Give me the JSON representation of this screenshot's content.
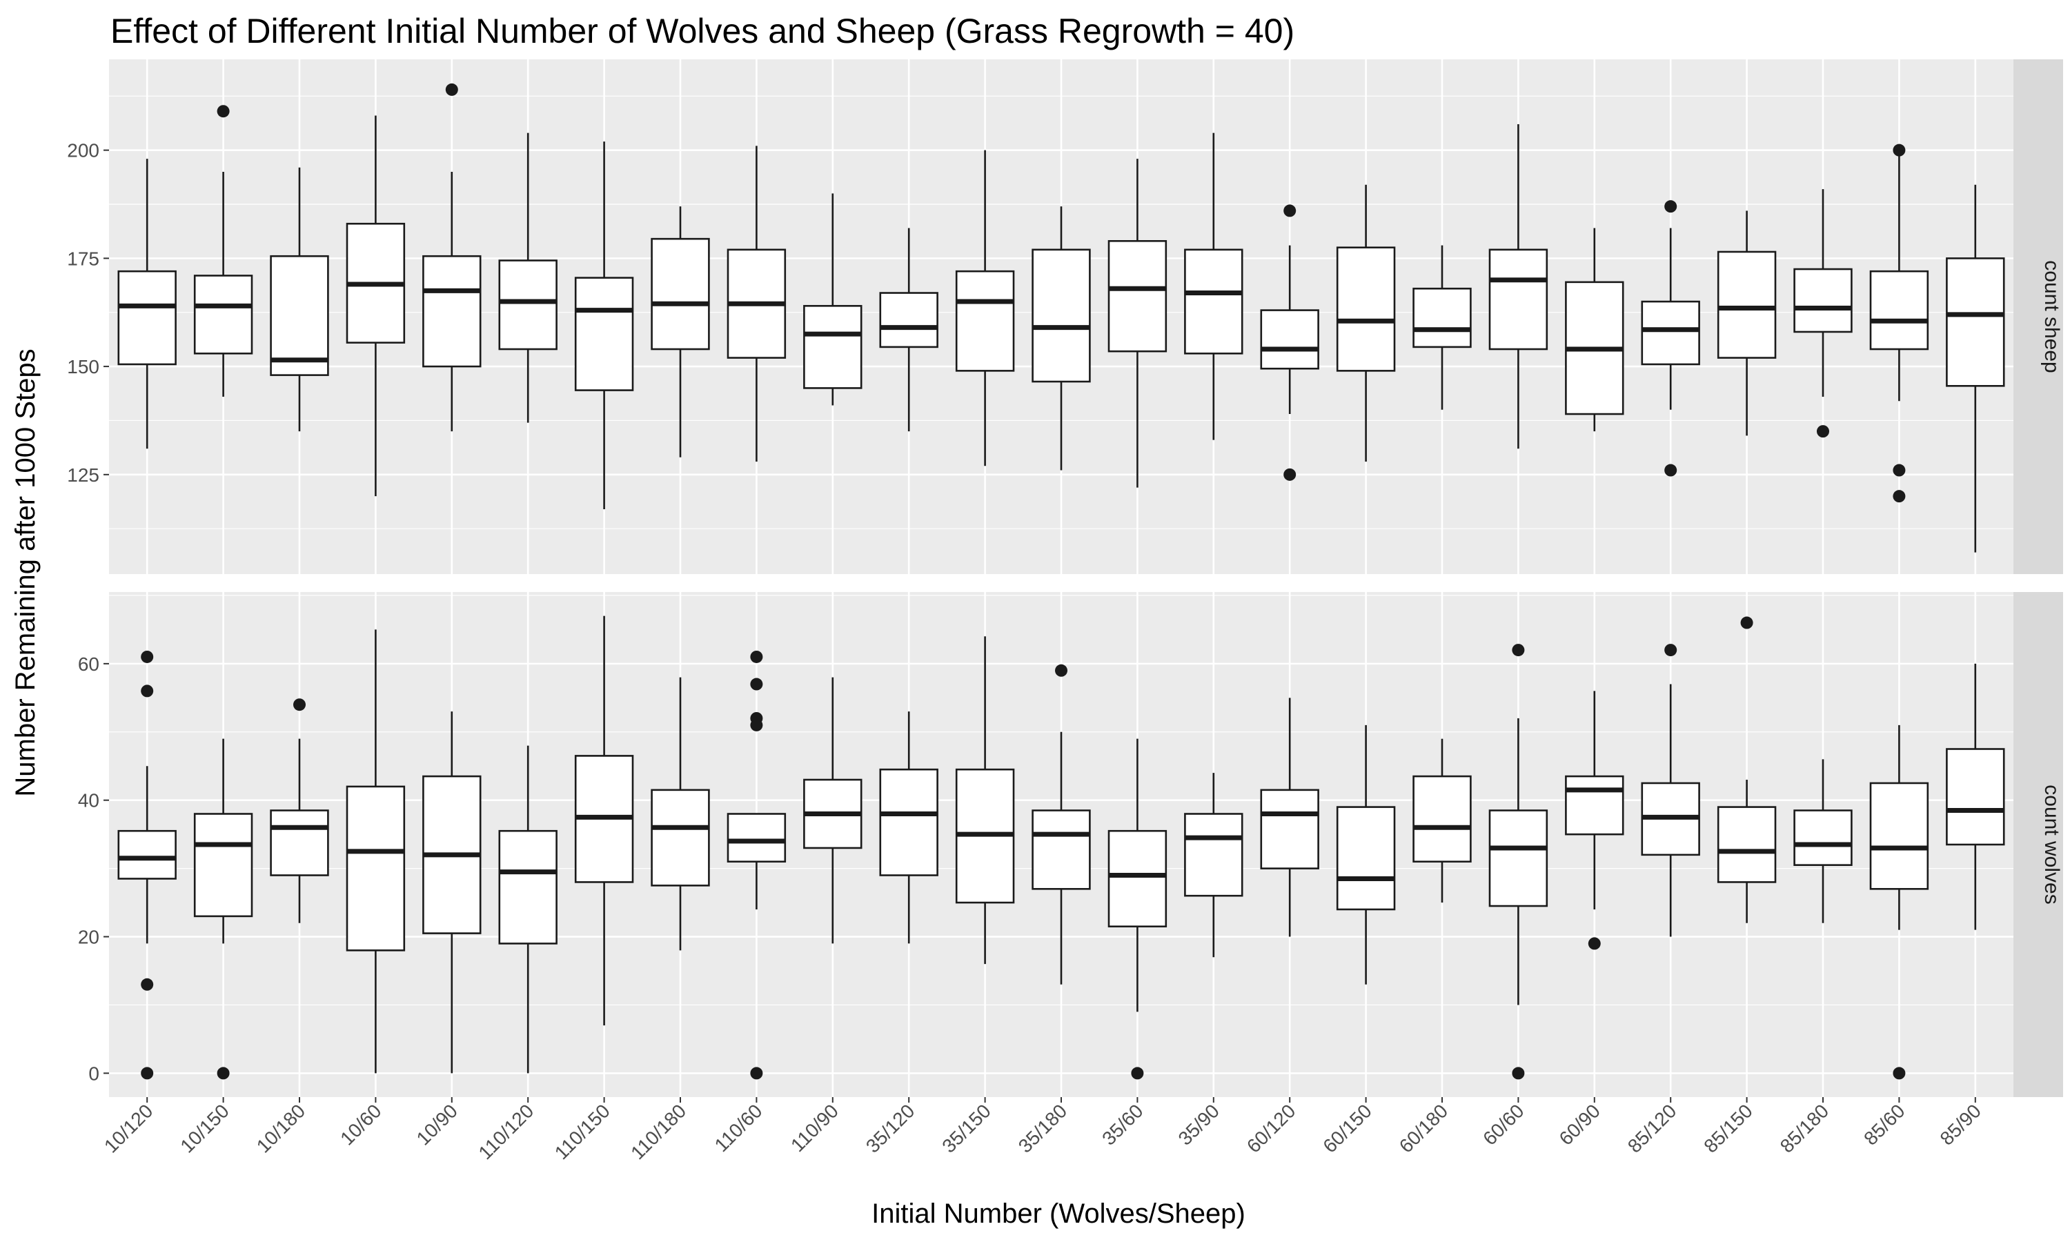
{
  "chart_data": {
    "type": "boxplot",
    "title": "Effect of Different Initial Number of Wolves and Sheep (Grass Regrowth = 40)",
    "xlabel": "Initial Number (Wolves/Sheep)",
    "ylabel": "Number Remaining after 1000 Steps",
    "categories": [
      "10/120",
      "10/150",
      "10/180",
      "10/60",
      "10/90",
      "110/120",
      "110/150",
      "110/180",
      "110/60",
      "110/90",
      "35/120",
      "35/150",
      "35/180",
      "35/60",
      "35/90",
      "60/120",
      "60/150",
      "60/180",
      "60/60",
      "60/90",
      "85/120",
      "85/150",
      "85/180",
      "85/60",
      "85/90"
    ],
    "colors": {
      "panel_bg": "#ebebeb",
      "grid": "#ffffff",
      "strip_bg": "#d9d9d9",
      "box_fill": "#ffffff",
      "box_stroke": "#1a1a1a",
      "outlier": "#1a1a1a"
    },
    "facets": [
      {
        "label": "count sheep",
        "ylim": [
          102,
          221
        ],
        "yticks": [
          125,
          150,
          175,
          200
        ],
        "boxes": [
          {
            "min": 131,
            "q1": 150.5,
            "median": 164,
            "q3": 172,
            "max": 198,
            "outliers": []
          },
          {
            "min": 143,
            "q1": 153,
            "median": 164,
            "q3": 171,
            "max": 195,
            "outliers": [
              209
            ]
          },
          {
            "min": 135,
            "q1": 148,
            "median": 151.5,
            "q3": 175.5,
            "max": 196,
            "outliers": []
          },
          {
            "min": 120,
            "q1": 155.5,
            "median": 169,
            "q3": 183,
            "max": 208,
            "outliers": []
          },
          {
            "min": 135,
            "q1": 150,
            "median": 167.5,
            "q3": 175.5,
            "max": 195,
            "outliers": [
              214
            ]
          },
          {
            "min": 137,
            "q1": 154,
            "median": 165,
            "q3": 174.5,
            "max": 204,
            "outliers": []
          },
          {
            "min": 117,
            "q1": 144.5,
            "median": 163,
            "q3": 170.5,
            "max": 202,
            "outliers": []
          },
          {
            "min": 129,
            "q1": 154,
            "median": 164.5,
            "q3": 179.5,
            "max": 187,
            "outliers": []
          },
          {
            "min": 128,
            "q1": 152,
            "median": 164.5,
            "q3": 177,
            "max": 201,
            "outliers": []
          },
          {
            "min": 141,
            "q1": 145,
            "median": 157.5,
            "q3": 164,
            "max": 190,
            "outliers": []
          },
          {
            "min": 135,
            "q1": 154.5,
            "median": 159,
            "q3": 167,
            "max": 182,
            "outliers": []
          },
          {
            "min": 127,
            "q1": 149,
            "median": 165,
            "q3": 172,
            "max": 200,
            "outliers": []
          },
          {
            "min": 126,
            "q1": 146.5,
            "median": 159,
            "q3": 177,
            "max": 187,
            "outliers": []
          },
          {
            "min": 122,
            "q1": 153.5,
            "median": 168,
            "q3": 179,
            "max": 198,
            "outliers": []
          },
          {
            "min": 133,
            "q1": 153,
            "median": 167,
            "q3": 177,
            "max": 204,
            "outliers": []
          },
          {
            "min": 139,
            "q1": 149.5,
            "median": 154,
            "q3": 163,
            "max": 178,
            "outliers": [
              125,
              186
            ]
          },
          {
            "min": 128,
            "q1": 149,
            "median": 160.5,
            "q3": 177.5,
            "max": 192,
            "outliers": []
          },
          {
            "min": 140,
            "q1": 154.5,
            "median": 158.5,
            "q3": 168,
            "max": 178,
            "outliers": []
          },
          {
            "min": 131,
            "q1": 154,
            "median": 170,
            "q3": 177,
            "max": 206,
            "outliers": []
          },
          {
            "min": 135,
            "q1": 139,
            "median": 154,
            "q3": 169.5,
            "max": 182,
            "outliers": []
          },
          {
            "min": 140,
            "q1": 150.5,
            "median": 158.5,
            "q3": 165,
            "max": 182,
            "outliers": [
              126,
              187
            ]
          },
          {
            "min": 134,
            "q1": 152,
            "median": 163.5,
            "q3": 176.5,
            "max": 186,
            "outliers": []
          },
          {
            "min": 143,
            "q1": 158,
            "median": 163.5,
            "q3": 172.5,
            "max": 191,
            "outliers": [
              135
            ]
          },
          {
            "min": 142,
            "q1": 154,
            "median": 160.5,
            "q3": 172,
            "max": 200,
            "outliers": [
              126,
              120,
              200
            ]
          },
          {
            "min": 107,
            "q1": 145.5,
            "median": 162,
            "q3": 175,
            "max": 192,
            "outliers": []
          }
        ]
      },
      {
        "label": "count wolves",
        "ylim": [
          -3.5,
          70.5
        ],
        "yticks": [
          0,
          20,
          40,
          60
        ],
        "boxes": [
          {
            "min": 19,
            "q1": 28.5,
            "median": 31.5,
            "q3": 35.5,
            "max": 45,
            "outliers": [
              0,
              13,
              56,
              61
            ]
          },
          {
            "min": 19,
            "q1": 23,
            "median": 33.5,
            "q3": 38,
            "max": 49,
            "outliers": [
              0
            ]
          },
          {
            "min": 22,
            "q1": 29,
            "median": 36,
            "q3": 38.5,
            "max": 49,
            "outliers": [
              54
            ]
          },
          {
            "min": 0,
            "q1": 18,
            "median": 32.5,
            "q3": 42,
            "max": 65,
            "outliers": []
          },
          {
            "min": 0,
            "q1": 20.5,
            "median": 32,
            "q3": 43.5,
            "max": 53,
            "outliers": []
          },
          {
            "min": 0,
            "q1": 19,
            "median": 29.5,
            "q3": 35.5,
            "max": 48,
            "outliers": []
          },
          {
            "min": 7,
            "q1": 28,
            "median": 37.5,
            "q3": 46.5,
            "max": 67,
            "outliers": []
          },
          {
            "min": 18,
            "q1": 27.5,
            "median": 36,
            "q3": 41.5,
            "max": 58,
            "outliers": []
          },
          {
            "min": 24,
            "q1": 31,
            "median": 34,
            "q3": 38,
            "max": 38,
            "outliers": [
              0,
              51,
              52,
              57,
              61
            ]
          },
          {
            "min": 19,
            "q1": 33,
            "median": 38,
            "q3": 43,
            "max": 58,
            "outliers": []
          },
          {
            "min": 19,
            "q1": 29,
            "median": 38,
            "q3": 44.5,
            "max": 53,
            "outliers": []
          },
          {
            "min": 16,
            "q1": 25,
            "median": 35,
            "q3": 44.5,
            "max": 64,
            "outliers": []
          },
          {
            "min": 13,
            "q1": 27,
            "median": 35,
            "q3": 38.5,
            "max": 50,
            "outliers": [
              59
            ]
          },
          {
            "min": 9,
            "q1": 21.5,
            "median": 29,
            "q3": 35.5,
            "max": 49,
            "outliers": [
              0
            ]
          },
          {
            "min": 17,
            "q1": 26,
            "median": 34.5,
            "q3": 38,
            "max": 44,
            "outliers": []
          },
          {
            "min": 20,
            "q1": 30,
            "median": 38,
            "q3": 41.5,
            "max": 55,
            "outliers": []
          },
          {
            "min": 13,
            "q1": 24,
            "median": 28.5,
            "q3": 39,
            "max": 51,
            "outliers": []
          },
          {
            "min": 25,
            "q1": 31,
            "median": 36,
            "q3": 43.5,
            "max": 49,
            "outliers": []
          },
          {
            "min": 10,
            "q1": 24.5,
            "median": 33,
            "q3": 38.5,
            "max": 52,
            "outliers": [
              0,
              62
            ]
          },
          {
            "min": 24,
            "q1": 35,
            "median": 41.5,
            "q3": 43.5,
            "max": 56,
            "outliers": [
              19
            ]
          },
          {
            "min": 20,
            "q1": 32,
            "median": 37.5,
            "q3": 42.5,
            "max": 57,
            "outliers": [
              62
            ]
          },
          {
            "min": 22,
            "q1": 28,
            "median": 32.5,
            "q3": 39,
            "max": 43,
            "outliers": [
              66
            ]
          },
          {
            "min": 22,
            "q1": 30.5,
            "median": 33.5,
            "q3": 38.5,
            "max": 46,
            "outliers": []
          },
          {
            "min": 21,
            "q1": 27,
            "median": 33,
            "q3": 42.5,
            "max": 51,
            "outliers": [
              0
            ]
          },
          {
            "min": 21,
            "q1": 33.5,
            "median": 38.5,
            "q3": 47.5,
            "max": 60,
            "outliers": []
          }
        ]
      }
    ]
  }
}
